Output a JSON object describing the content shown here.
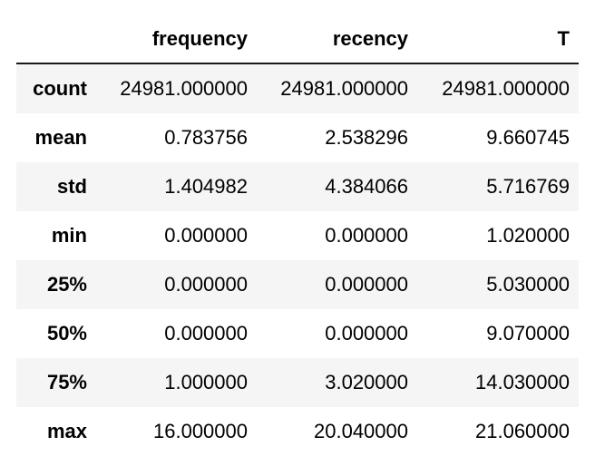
{
  "table": {
    "index_header": "",
    "columns": [
      "frequency",
      "recency",
      "T"
    ],
    "rows": [
      {
        "label": "count",
        "values": [
          "24981.000000",
          "24981.000000",
          "24981.000000"
        ]
      },
      {
        "label": "mean",
        "values": [
          "0.783756",
          "2.538296",
          "9.660745"
        ]
      },
      {
        "label": "std",
        "values": [
          "1.404982",
          "4.384066",
          "5.716769"
        ]
      },
      {
        "label": "min",
        "values": [
          "0.000000",
          "0.000000",
          "1.020000"
        ]
      },
      {
        "label": "25%",
        "values": [
          "0.000000",
          "0.000000",
          "5.030000"
        ]
      },
      {
        "label": "50%",
        "values": [
          "0.000000",
          "0.000000",
          "9.070000"
        ]
      },
      {
        "label": "75%",
        "values": [
          "1.000000",
          "3.020000",
          "14.030000"
        ]
      },
      {
        "label": "max",
        "values": [
          "16.000000",
          "20.040000",
          "21.060000"
        ]
      }
    ]
  }
}
